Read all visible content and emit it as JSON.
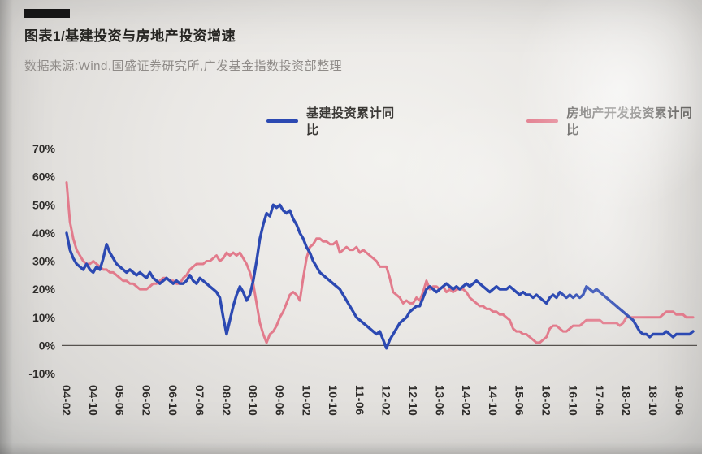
{
  "header": {
    "title": "图表1/基建投资与房地产投资增速",
    "source_note": "数据来源:Wind,国盛证券研究所,广发基金指数投资部整理"
  },
  "chart_data": {
    "type": "line",
    "title": "图表1/基建投资与房地产投资增速",
    "source": "数据来源:Wind,国盛证券研究所,广发基金指数投资部整理",
    "grid": false,
    "legend_position": "top",
    "ylim": [
      -10,
      70
    ],
    "y_ticks": [
      "70%",
      "60%",
      "50%",
      "40%",
      "30%",
      "20%",
      "10%",
      "0%",
      "-10%"
    ],
    "x_start": "2004-02",
    "x_interval_months": 1,
    "x_tick_step": 8,
    "x_tick_labels": [
      "04-02",
      "04-10",
      "05-06",
      "06-02",
      "06-10",
      "07-06",
      "08-02",
      "08-10",
      "09-06",
      "10-02",
      "10-10",
      "11-06",
      "12-02",
      "12-10",
      "13-06",
      "14-02",
      "14-10",
      "15-06",
      "16-02",
      "16-10",
      "17-06",
      "18-02",
      "18-10",
      "19-06"
    ],
    "series": [
      {
        "name": "基建投资累计同比",
        "color": "#2c49b2",
        "values": [
          40,
          34,
          31,
          29,
          28,
          27,
          29,
          27,
          26,
          28,
          27,
          31,
          36,
          33,
          31,
          29,
          28,
          27,
          26,
          27,
          26,
          25,
          26,
          25,
          24,
          26,
          24,
          23,
          22,
          23,
          24,
          23,
          22,
          23,
          22,
          22,
          23,
          25,
          23,
          22,
          24,
          23,
          22,
          21,
          20,
          19,
          17,
          10,
          4,
          9,
          14,
          18,
          21,
          19,
          16,
          18,
          23,
          30,
          38,
          43,
          47,
          46,
          50,
          49,
          50,
          48,
          47,
          48,
          45,
          43,
          40,
          38,
          35,
          33,
          30,
          28,
          26,
          25,
          24,
          23,
          22,
          21,
          20,
          18,
          16,
          14,
          12,
          10,
          9,
          8,
          7,
          6,
          5,
          4,
          5,
          2,
          -1,
          2,
          4,
          6,
          8,
          9,
          10,
          12,
          13,
          14,
          14,
          17,
          20,
          21,
          20,
          19,
          20,
          21,
          22,
          21,
          20,
          21,
          20,
          21,
          22,
          21,
          22,
          23,
          22,
          21,
          20,
          19,
          20,
          21,
          20,
          20,
          20,
          21,
          20,
          19,
          18,
          19,
          18,
          18,
          17,
          18,
          17,
          16,
          15,
          17,
          18,
          17,
          19,
          18,
          17,
          18,
          17,
          18,
          17,
          18,
          21,
          20,
          19,
          20,
          19,
          18,
          17,
          16,
          15,
          14,
          13,
          12,
          11,
          10,
          9,
          7,
          5,
          4,
          4,
          3,
          4,
          4,
          4,
          4,
          5,
          4,
          3,
          4,
          4,
          4,
          4,
          4,
          5
        ]
      },
      {
        "name": "房地产开发投资累计同比",
        "color": "#e27b8c",
        "values": [
          58,
          44,
          38,
          34,
          32,
          30,
          29,
          29,
          30,
          29,
          28,
          27,
          27,
          26,
          26,
          25,
          24,
          23,
          23,
          22,
          22,
          21,
          20,
          20,
          20,
          21,
          22,
          22,
          23,
          24,
          24,
          23,
          23,
          22,
          22,
          24,
          25,
          27,
          28,
          29,
          29,
          29,
          30,
          30,
          31,
          32,
          30,
          31,
          33,
          32,
          33,
          32,
          33,
          31,
          29,
          26,
          22,
          15,
          8,
          4,
          1,
          4,
          5,
          7,
          10,
          12,
          15,
          18,
          19,
          18,
          16,
          24,
          31,
          35,
          36,
          38,
          38,
          37,
          37,
          36,
          36,
          37,
          33,
          34,
          35,
          34,
          34,
          35,
          33,
          34,
          33,
          32,
          31,
          30,
          28,
          28,
          28,
          24,
          19,
          18,
          17,
          15,
          16,
          15,
          15,
          17,
          16,
          19,
          23,
          20,
          21,
          21,
          20,
          21,
          19,
          20,
          19,
          20,
          20,
          20,
          19,
          17,
          16,
          15,
          14,
          14,
          13,
          13,
          12,
          12,
          11,
          11,
          10,
          9,
          6,
          5,
          5,
          4,
          4,
          3,
          2,
          1,
          1,
          2,
          3,
          6,
          7,
          7,
          6,
          5,
          5,
          6,
          7,
          7,
          7,
          8,
          9,
          9,
          9,
          9,
          9,
          8,
          8,
          8,
          8,
          8,
          7,
          8,
          10,
          10,
          10,
          10,
          10,
          10,
          10,
          10,
          10,
          10,
          10,
          11,
          12,
          12,
          12,
          11,
          11,
          11,
          10,
          10,
          10
        ]
      }
    ]
  }
}
